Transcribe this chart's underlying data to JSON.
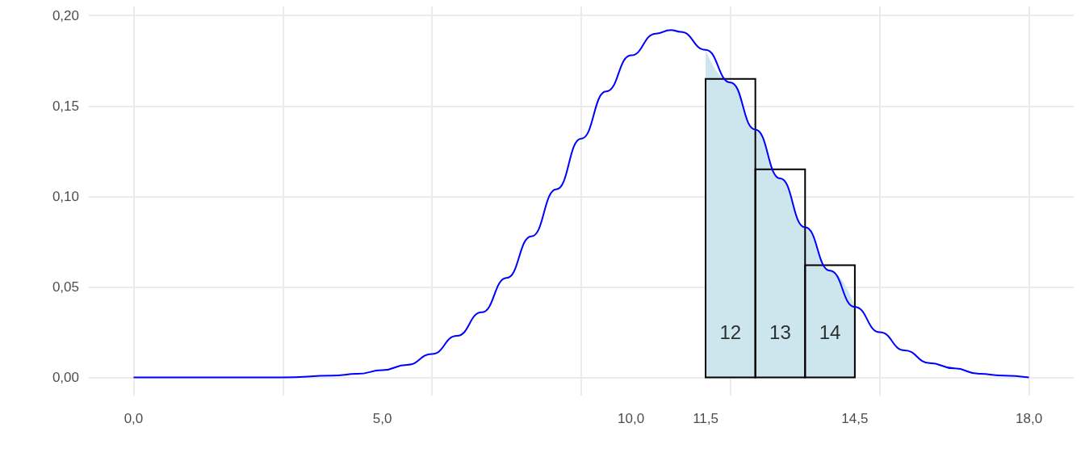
{
  "chart_data": {
    "type": "line",
    "xlim": [
      -0.9,
      18.9
    ],
    "ylim": [
      -0.01,
      0.205
    ],
    "xticks": [
      {
        "value": 0,
        "label": "0,0"
      },
      {
        "value": 5,
        "label": "5,0"
      },
      {
        "value": 10,
        "label": "10,0"
      },
      {
        "value": 11.5,
        "label": "11,5"
      },
      {
        "value": 14.5,
        "label": "14,5"
      },
      {
        "value": 18,
        "label": "18,0"
      }
    ],
    "yticks": [
      {
        "value": 0,
        "label": "0,00"
      },
      {
        "value": 0.05,
        "label": "0,05"
      },
      {
        "value": 0.1,
        "label": "0,10"
      },
      {
        "value": 0.15,
        "label": "0,15"
      },
      {
        "value": 0.2,
        "label": "0,20"
      }
    ],
    "grid": true,
    "marker": "none",
    "line_style": "solid",
    "series": [
      {
        "type": "area",
        "color": "#cde6ee",
        "x": [
          11.5,
          12,
          12.5,
          13,
          13.5,
          14,
          14.5
        ],
        "values": [
          0.181,
          0.163,
          0.137,
          0.11,
          0.083,
          0.059,
          0.039
        ]
      },
      {
        "type": "histogram",
        "color": "#000000",
        "bins": [
          11.5,
          12.5,
          13.5,
          14.5
        ],
        "values": [
          0.165,
          0.115,
          0.062
        ]
      },
      {
        "color": "#0000ff",
        "x": [
          0,
          1,
          2,
          3,
          4,
          4.5,
          5,
          5.5,
          6,
          6.5,
          7,
          7.5,
          8,
          8.5,
          9,
          9.5,
          10,
          10.5,
          10.8,
          11,
          11.5,
          12,
          12.5,
          13,
          13.5,
          14,
          14.5,
          15,
          15.5,
          16,
          16.5,
          17,
          17.5,
          18
        ],
        "values": [
          0,
          0,
          0,
          0,
          0.001,
          0.002,
          0.004,
          0.007,
          0.013,
          0.023,
          0.036,
          0.055,
          0.078,
          0.104,
          0.132,
          0.158,
          0.178,
          0.19,
          0.192,
          0.191,
          0.181,
          0.163,
          0.137,
          0.11,
          0.083,
          0.059,
          0.039,
          0.025,
          0.015,
          0.008,
          0.005,
          0.002,
          0.001,
          0
        ]
      }
    ],
    "annotations": [
      "12",
      "13",
      "14"
    ]
  }
}
